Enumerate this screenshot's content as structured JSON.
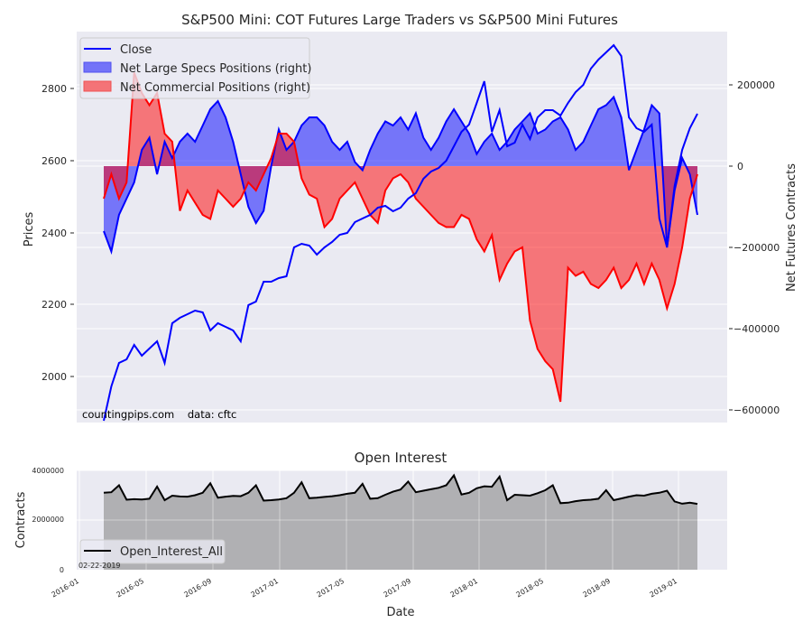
{
  "chart_data": [
    {
      "type": "line",
      "title": "S&P500 Mini: COT Futures Large Traders vs S&P500 Mini Futures",
      "xlabel": "",
      "ylabel": "Prices",
      "ylabel_right": "Net Futures Contracts",
      "ylim": [
        1872,
        2955
      ],
      "ylim_right": [
        -630000,
        330000
      ],
      "yticks": [
        2000,
        2200,
        2400,
        2600,
        2800
      ],
      "yticks_right": [
        200000,
        0,
        -200000,
        -400000,
        -600000
      ],
      "grid": true,
      "legend_position": "upper left",
      "legend": [
        "Close",
        "Net Large Specs Positions (right)",
        "Net Commercial Positions (right)"
      ],
      "annotations": [
        "countingpips.com    data: cftc"
      ],
      "x": [
        "2016-03-01",
        "2016-03-15",
        "2016-03-29",
        "2016-04-12",
        "2016-04-26",
        "2016-05-10",
        "2016-05-24",
        "2016-06-07",
        "2016-06-21",
        "2016-07-05",
        "2016-07-19",
        "2016-08-02",
        "2016-08-16",
        "2016-08-30",
        "2016-09-13",
        "2016-09-27",
        "2016-10-11",
        "2016-10-25",
        "2016-11-08",
        "2016-11-22",
        "2016-12-06",
        "2016-12-20",
        "2017-01-03",
        "2017-01-17",
        "2017-01-31",
        "2017-02-14",
        "2017-02-28",
        "2017-03-14",
        "2017-03-28",
        "2017-04-11",
        "2017-04-25",
        "2017-05-09",
        "2017-05-23",
        "2017-06-06",
        "2017-06-20",
        "2017-07-04",
        "2017-07-18",
        "2017-08-01",
        "2017-08-15",
        "2017-08-29",
        "2017-09-12",
        "2017-09-26",
        "2017-10-10",
        "2017-10-24",
        "2017-11-07",
        "2017-11-21",
        "2017-12-05",
        "2017-12-19",
        "2018-01-02",
        "2018-01-16",
        "2018-01-30",
        "2018-02-13",
        "2018-02-27",
        "2018-03-13",
        "2018-03-27",
        "2018-04-10",
        "2018-04-24",
        "2018-05-08",
        "2018-05-22",
        "2018-06-05",
        "2018-06-19",
        "2018-07-03",
        "2018-07-17",
        "2018-07-31",
        "2018-08-14",
        "2018-08-28",
        "2018-09-11",
        "2018-09-25",
        "2018-10-09",
        "2018-10-23",
        "2018-11-06",
        "2018-11-20",
        "2018-12-04",
        "2018-12-18",
        "2019-01-01",
        "2019-01-15",
        "2019-01-29",
        "2019-02-12",
        "2019-02-19"
      ],
      "series": [
        {
          "name": "Close",
          "axis": "left",
          "color": "#0000ff",
          "values": [
            1880,
            1975,
            2040,
            2050,
            2090,
            2060,
            2080,
            2100,
            2040,
            2150,
            2165,
            2175,
            2185,
            2180,
            2130,
            2150,
            2140,
            2130,
            2100,
            2200,
            2210,
            2265,
            2265,
            2275,
            2280,
            2360,
            2370,
            2365,
            2340,
            2360,
            2375,
            2395,
            2400,
            2430,
            2440,
            2450,
            2470,
            2475,
            2460,
            2470,
            2495,
            2510,
            2550,
            2570,
            2580,
            2600,
            2640,
            2680,
            2700,
            2760,
            2820,
            2680,
            2740,
            2640,
            2650,
            2700,
            2660,
            2720,
            2740,
            2740,
            2725,
            2760,
            2790,
            2810,
            2855,
            2880,
            2900,
            2920,
            2890,
            2720,
            2690,
            2680,
            2700,
            2440,
            2360,
            2530,
            2630,
            2690,
            2730
          ]
        },
        {
          "name": "Net Large Specs Positions (right)",
          "axis": "right",
          "color": "#0000ff",
          "fill": "#0000ff",
          "fill_alpha": 0.5,
          "values": [
            -160000,
            -210000,
            -120000,
            -80000,
            -40000,
            40000,
            70000,
            -20000,
            60000,
            20000,
            60000,
            80000,
            60000,
            100000,
            140000,
            160000,
            120000,
            60000,
            -20000,
            -100000,
            -140000,
            -110000,
            0,
            90000,
            40000,
            60000,
            100000,
            120000,
            120000,
            100000,
            60000,
            40000,
            60000,
            10000,
            -10000,
            40000,
            80000,
            110000,
            100000,
            120000,
            90000,
            130000,
            70000,
            40000,
            70000,
            110000,
            140000,
            110000,
            80000,
            30000,
            60000,
            80000,
            40000,
            60000,
            90000,
            110000,
            130000,
            80000,
            90000,
            110000,
            120000,
            90000,
            40000,
            60000,
            100000,
            140000,
            150000,
            170000,
            120000,
            -10000,
            40000,
            90000,
            150000,
            130000,
            -200000,
            -60000,
            20000,
            -20000,
            -120000
          ]
        },
        {
          "name": "Net Commercial Positions (right)",
          "axis": "right",
          "color": "#ff0000",
          "fill": "#ff0000",
          "fill_alpha": 0.5,
          "values": [
            -80000,
            -20000,
            -80000,
            -40000,
            230000,
            180000,
            150000,
            180000,
            80000,
            60000,
            -110000,
            -60000,
            -90000,
            -120000,
            -130000,
            -60000,
            -80000,
            -100000,
            -80000,
            -40000,
            -60000,
            -20000,
            20000,
            80000,
            80000,
            60000,
            -30000,
            -70000,
            -80000,
            -150000,
            -130000,
            -80000,
            -60000,
            -40000,
            -80000,
            -120000,
            -140000,
            -60000,
            -30000,
            -20000,
            -40000,
            -80000,
            -100000,
            -120000,
            -140000,
            -150000,
            -150000,
            -120000,
            -130000,
            -180000,
            -210000,
            -170000,
            -280000,
            -240000,
            -210000,
            -200000,
            -380000,
            -450000,
            -480000,
            -500000,
            -580000,
            -250000,
            -270000,
            -260000,
            -290000,
            -300000,
            -280000,
            -250000,
            -300000,
            -280000,
            -240000,
            -290000,
            -240000,
            -280000,
            -350000,
            -290000,
            -200000,
            -80000,
            -20000
          ]
        }
      ]
    },
    {
      "type": "area",
      "title": "Open Interest",
      "xlabel": "Date",
      "ylabel": "Contracts",
      "ylim": [
        0,
        4000000
      ],
      "yticks": [
        0,
        2000000,
        4000000
      ],
      "xticks": [
        "2016-01",
        "2016-05",
        "2016-09",
        "2017-01",
        "2017-05",
        "2017-09",
        "2018-01",
        "2018-05",
        "2018-09",
        "2019-01"
      ],
      "grid": true,
      "legend_position": "lower left",
      "legend": [
        "Open_Interest_All"
      ],
      "annotations": [
        "02-22-2019"
      ],
      "series": [
        {
          "name": "Open_Interest_All",
          "color": "#000000",
          "fill": "#808080",
          "fill_alpha": 0.55,
          "values": [
            3100000,
            3120000,
            3400000,
            2820000,
            2840000,
            2830000,
            2860000,
            3350000,
            2800000,
            2980000,
            2950000,
            2940000,
            3000000,
            3100000,
            3480000,
            2900000,
            2940000,
            2970000,
            2960000,
            3100000,
            3400000,
            2780000,
            2800000,
            2830000,
            2880000,
            3100000,
            3520000,
            2880000,
            2900000,
            2930000,
            2960000,
            3000000,
            3060000,
            3100000,
            3460000,
            2860000,
            2880000,
            3020000,
            3140000,
            3230000,
            3550000,
            3120000,
            3180000,
            3240000,
            3300000,
            3400000,
            3800000,
            3030000,
            3100000,
            3280000,
            3360000,
            3340000,
            3750000,
            2800000,
            3020000,
            3000000,
            2980000,
            3080000,
            3200000,
            3400000,
            2680000,
            2700000,
            2760000,
            2800000,
            2820000,
            2860000,
            3200000,
            2800000,
            2870000,
            2940000,
            3000000,
            2980000,
            3060000,
            3100000,
            3180000,
            2750000,
            2660000,
            2700000,
            2650000
          ]
        }
      ]
    }
  ],
  "top_chart": {
    "title": "S&P500 Mini: COT Futures Large Traders vs S&P500 Mini Futures",
    "ylabel_left": "Prices",
    "ylabel_right": "Net Futures Contracts",
    "legend": {
      "close": "Close",
      "specs": "Net Large Specs Positions (right)",
      "commercial": "Net Commercial Positions (right)"
    },
    "left_ticks": [
      "2800",
      "2600",
      "2400",
      "2200",
      "2000"
    ],
    "right_ticks": [
      "200000",
      "0",
      "−200000",
      "−400000",
      "−600000"
    ],
    "source_note": "countingpips.com    data: cftc"
  },
  "bottom_chart": {
    "title": "Open Interest",
    "ylabel": "Contracts",
    "xlabel": "Date",
    "y_ticks": [
      "4000000",
      "2000000",
      "0"
    ],
    "x_ticks": [
      "2016-01",
      "2016-05",
      "2016-09",
      "2017-01",
      "2017-05",
      "2017-09",
      "2018-01",
      "2018-05",
      "2018-09",
      "2019-01"
    ],
    "legend": "Open_Interest_All",
    "date_note": "02-22-2019"
  },
  "colors": {
    "axes_bg": "#eaeaf2",
    "grid": "#ffffff",
    "close": "#0000ff",
    "specs_fill": "#7373f8",
    "commercial_fill": "#f47377",
    "commercial_line": "#ff0000",
    "oi_fill": "#b3b3b7",
    "oi_line": "#000000"
  }
}
